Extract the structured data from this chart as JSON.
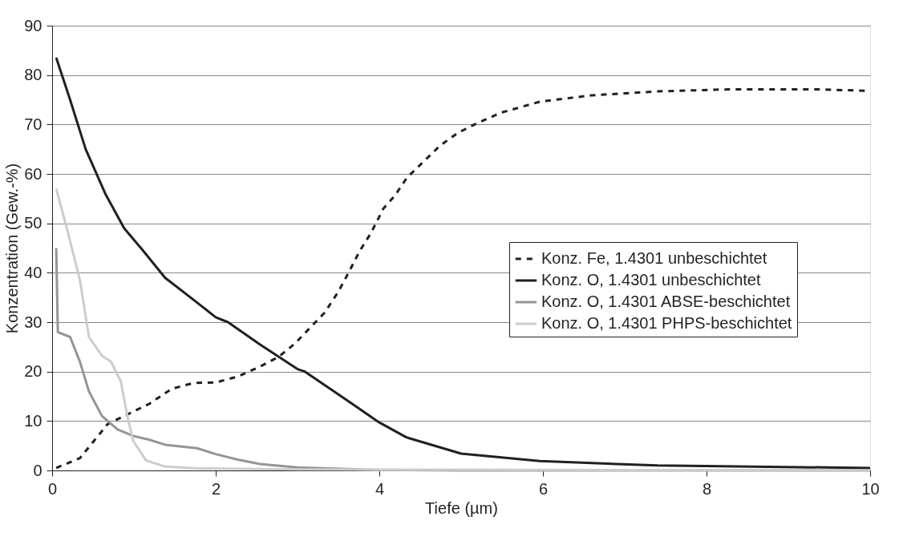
{
  "chart_data": {
    "type": "line",
    "xlabel": "Tiefe (µm)",
    "ylabel": "Konzentration (Gew.-%)",
    "xlim": [
      0,
      10
    ],
    "xticks": [
      0,
      2,
      4,
      6,
      8,
      10
    ],
    "ylim": [
      0,
      90
    ],
    "yticks": [
      0,
      10,
      20,
      30,
      40,
      50,
      60,
      70,
      80,
      90
    ],
    "grid": "y",
    "legend": "bottom right",
    "marker": "none",
    "series": [
      {
        "name": "Konz. Fe, 1.4301 unbeschichtet",
        "color": "#231f20",
        "line_style": "dashed",
        "x": [
          0.05,
          0.34,
          0.68,
          1.19,
          1.46,
          1.73,
          2.0,
          2.27,
          2.54,
          2.77,
          2.97,
          3.19,
          3.33,
          3.5,
          3.62,
          3.76,
          3.9,
          4.05,
          4.19,
          4.34,
          4.53,
          4.74,
          4.96,
          5.2,
          5.49,
          5.96,
          6.59,
          7.4,
          8.26,
          9.37,
          10
        ],
        "values": [
          0.5,
          2.5,
          9.4,
          13.5,
          16.5,
          17.7,
          17.8,
          19,
          21,
          23,
          25.7,
          29.5,
          31.9,
          36.2,
          39.9,
          44.4,
          48.1,
          53,
          55.6,
          59.3,
          62.3,
          65.7,
          68.3,
          70.3,
          72.4,
          74.6,
          75.9,
          76.7,
          77.1,
          77.1,
          76.8
        ]
      },
      {
        "name": "Konz. O, 1.4301 unbeschichtet",
        "color": "#231f20",
        "line_style": "solid",
        "x": [
          0.05,
          0.22,
          0.41,
          0.65,
          0.88,
          1.11,
          1.38,
          1.77,
          2.0,
          2.15,
          2.54,
          3.0,
          3.09,
          3.57,
          4.0,
          4.33,
          5.0,
          5.96,
          7.4,
          10
        ],
        "values": [
          83.5,
          75,
          65,
          56,
          49,
          44.5,
          39,
          34,
          31,
          30,
          25.5,
          20.5,
          20,
          14.6,
          9.7,
          6.7,
          3.4,
          1.9,
          1.0,
          0.5
        ]
      },
      {
        "name": "Konz. O, 1.4301 ABSE-beschichtet",
        "color": "#939598",
        "line_style": "solid",
        "x": [
          0.05,
          0.07,
          0.22,
          0.34,
          0.45,
          0.61,
          0.8,
          0.99,
          1.19,
          1.38,
          1.77,
          2.0,
          2.27,
          2.54,
          3.0,
          4.0,
          5.0,
          10
        ],
        "values": [
          45,
          28,
          27,
          22,
          16,
          11,
          8.3,
          7,
          6.2,
          5.2,
          4.5,
          3.3,
          2.2,
          1.3,
          0.6,
          0.1,
          0,
          0
        ]
      },
      {
        "name": "Konz. O, 1.4301 PHPS-beschichtet",
        "color": "#cccccc",
        "line_style": "solid",
        "x": [
          0.05,
          0.18,
          0.34,
          0.45,
          0.61,
          0.72,
          0.84,
          0.92,
          0.99,
          1.15,
          1.38,
          1.77,
          3.0,
          10
        ],
        "values": [
          57,
          49,
          38.5,
          27,
          23.2,
          22,
          18,
          11,
          6,
          2,
          0.8,
          0.4,
          0.2,
          0
        ]
      }
    ]
  }
}
